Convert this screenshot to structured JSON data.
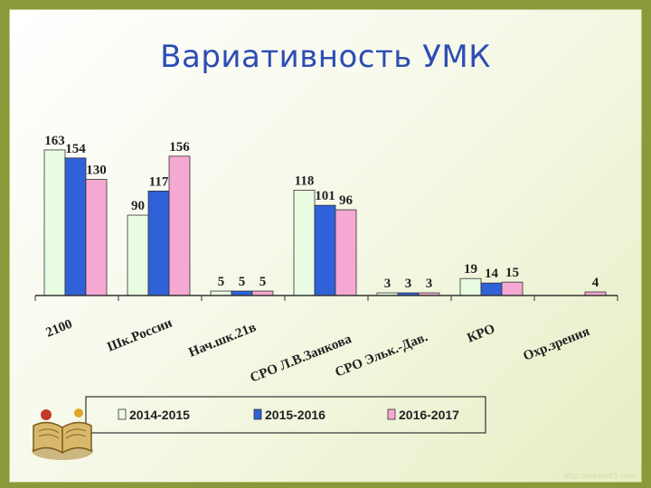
{
  "slide": {
    "title": "Вариативность УМК",
    "watermark": "http://present5.com"
  },
  "chart_data": {
    "type": "bar",
    "categories": [
      "2100",
      "Шк.России",
      "Нач.шк.21в",
      "СРО Л.В.Занкова",
      "СРО Эльк.-Дав.",
      "КРО",
      "Охр.зрения"
    ],
    "series": [
      {
        "name": "2014-2015",
        "color": "#e9fbe1",
        "values": [
          163,
          90,
          5,
          118,
          3,
          19,
          null
        ]
      },
      {
        "name": "2015-2016",
        "color": "#2f62d8",
        "values": [
          154,
          117,
          5,
          101,
          3,
          14,
          null
        ]
      },
      {
        "name": "2016-2017",
        "color": "#f5a8d2",
        "values": [
          130,
          156,
          5,
          96,
          3,
          15,
          4
        ]
      }
    ],
    "title": "",
    "xlabel": "",
    "ylabel": "",
    "ylim": [
      0,
      170
    ],
    "grid": false,
    "legend": "bottom"
  }
}
